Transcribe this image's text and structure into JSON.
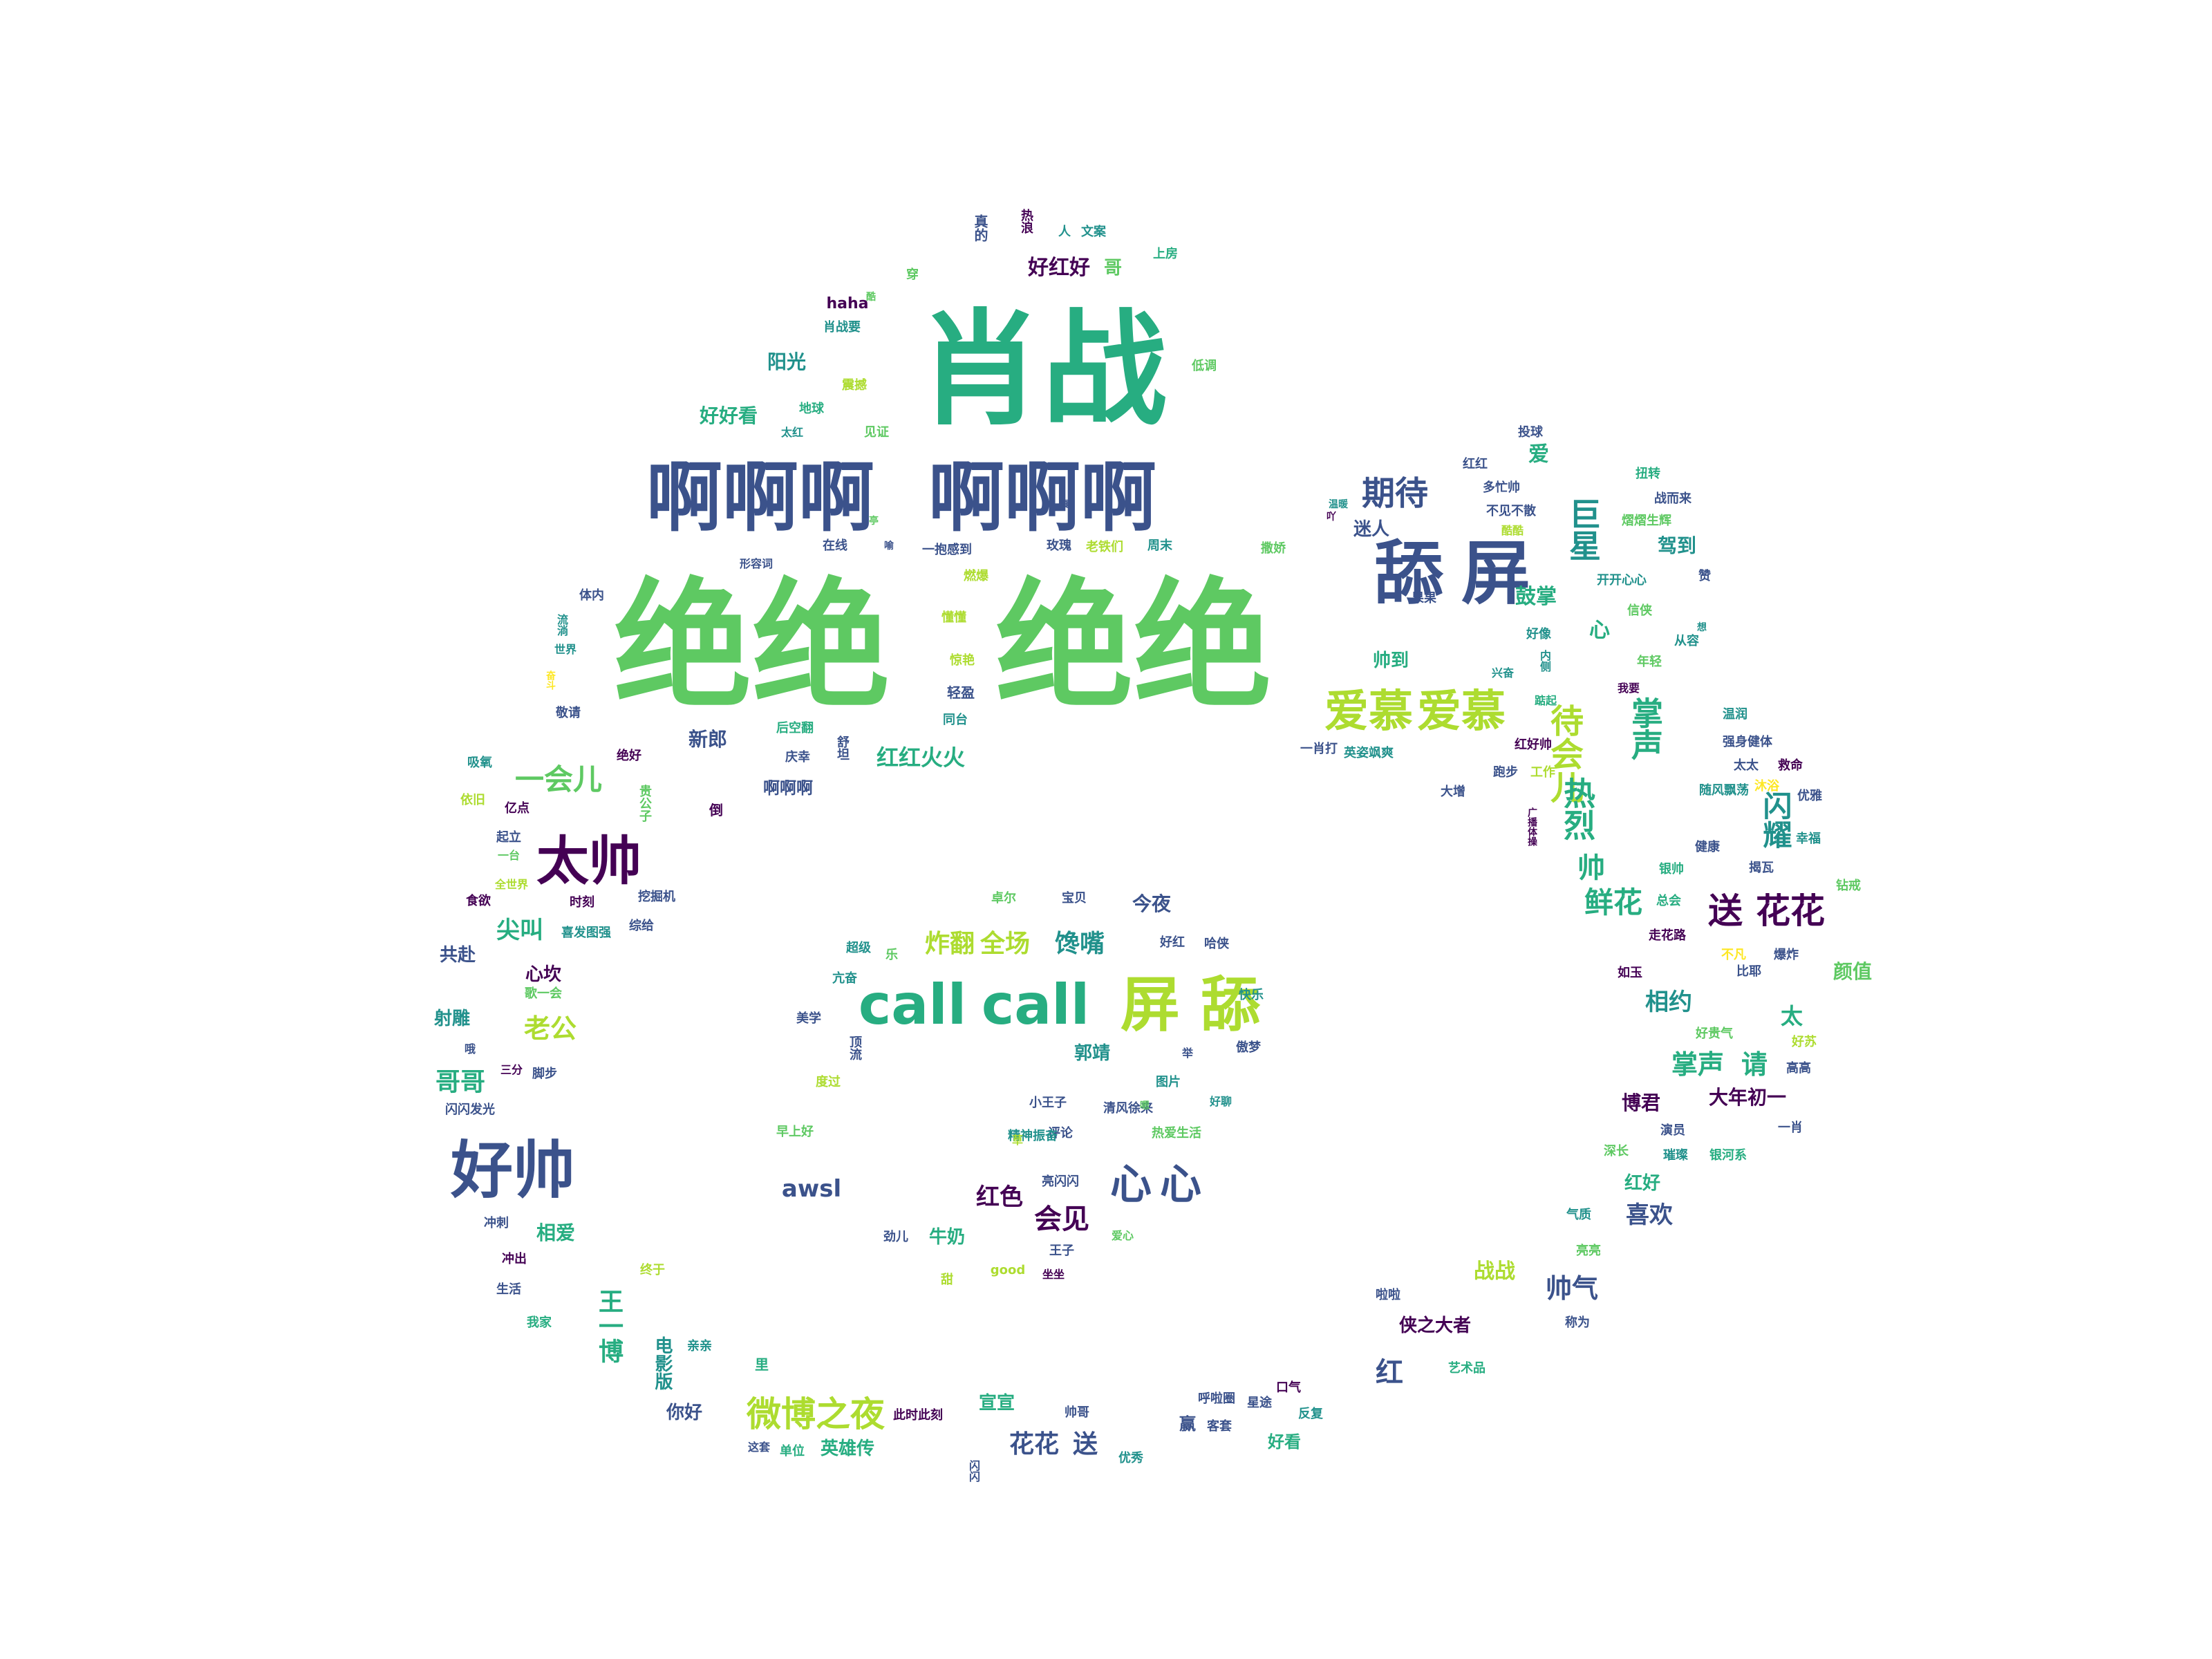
{
  "palette": {
    "c0": "#440154",
    "c1": "#3b528b",
    "c2": "#21918c",
    "c3": "#27ad81",
    "c4": "#5ec962",
    "c5": "#addc30",
    "c6": "#fde725"
  },
  "words": [
    {
      "text": "肖战",
      "color": "c3"
    },
    {
      "text": "啊啊啊",
      "color": "c1"
    },
    {
      "text": "啊啊啊",
      "color": "c1"
    },
    {
      "text": "绝绝",
      "color": "c4"
    },
    {
      "text": "绝绝",
      "color": "c4"
    },
    {
      "text": "舔",
      "color": "c1"
    },
    {
      "text": "屏",
      "color": "c1"
    },
    {
      "text": "call",
      "color": "c3"
    },
    {
      "text": "call",
      "color": "c3"
    },
    {
      "text": "屏",
      "color": "c5"
    },
    {
      "text": "舔",
      "color": "c5"
    },
    {
      "text": "好帅",
      "color": "c1"
    },
    {
      "text": "太帅",
      "color": "c0"
    },
    {
      "text": "爱慕",
      "color": "c5"
    },
    {
      "text": "爱慕",
      "color": "c5"
    },
    {
      "text": "送",
      "color": "c0"
    },
    {
      "text": "花花",
      "color": "c0"
    },
    {
      "text": "微博之夜",
      "color": "c5"
    },
    {
      "text": "心",
      "color": "c1"
    },
    {
      "text": "心",
      "color": "c1"
    },
    {
      "text": "期待",
      "color": "c1"
    },
    {
      "text": "巨星",
      "color": "c2"
    },
    {
      "text": "待会儿",
      "color": "c5"
    },
    {
      "text": "掌声",
      "color": "c3"
    },
    {
      "text": "热烈",
      "color": "c3"
    },
    {
      "text": "闪耀",
      "color": "c2"
    },
    {
      "text": "一会儿",
      "color": "c4"
    },
    {
      "text": "尖叫",
      "color": "c3"
    },
    {
      "text": "老公",
      "color": "c5"
    },
    {
      "text": "哥哥",
      "color": "c3"
    },
    {
      "text": "炸翻",
      "color": "c5"
    },
    {
      "text": "全场",
      "color": "c5"
    },
    {
      "text": "馋嘴",
      "color": "c2"
    },
    {
      "text": "鲜花",
      "color": "c3"
    },
    {
      "text": "帅",
      "color": "c3"
    },
    {
      "text": "awsl",
      "color": "c1"
    },
    {
      "text": "红色",
      "color": "c0"
    },
    {
      "text": "会见",
      "color": "c0"
    },
    {
      "text": "相约",
      "color": "c2"
    },
    {
      "text": "掌声",
      "color": "c3"
    },
    {
      "text": "请",
      "color": "c3"
    },
    {
      "text": "太",
      "color": "c3"
    },
    {
      "text": "帅气",
      "color": "c1"
    },
    {
      "text": "红",
      "color": "c1"
    },
    {
      "text": "喜欢",
      "color": "c1"
    },
    {
      "text": "花花",
      "color": "c1"
    },
    {
      "text": "送",
      "color": "c1"
    },
    {
      "text": "好好看",
      "color": "c3"
    },
    {
      "text": "阳光",
      "color": "c2"
    },
    {
      "text": "好红好",
      "color": "c0"
    },
    {
      "text": "哥",
      "color": "c4"
    },
    {
      "text": "红红火火",
      "color": "c3"
    },
    {
      "text": "新郎",
      "color": "c1"
    },
    {
      "text": "迷人",
      "color": "c1"
    },
    {
      "text": "鼓掌",
      "color": "c3"
    },
    {
      "text": "心",
      "color": "c3"
    },
    {
      "text": "帅到",
      "color": "c3"
    },
    {
      "text": "驾到",
      "color": "c2"
    },
    {
      "text": "爱",
      "color": "c3"
    },
    {
      "text": "宣宣",
      "color": "c3"
    },
    {
      "text": "英雄传",
      "color": "c3"
    },
    {
      "text": "你好",
      "color": "c1"
    },
    {
      "text": "王一博",
      "color": "c3"
    },
    {
      "text": "电影版",
      "color": "c2"
    },
    {
      "text": "相爱",
      "color": "c3"
    },
    {
      "text": "心坎",
      "color": "c0"
    },
    {
      "text": "共赴",
      "color": "c1"
    },
    {
      "text": "射雕",
      "color": "c2"
    },
    {
      "text": "大年初一",
      "color": "c0"
    },
    {
      "text": "博君",
      "color": "c0"
    },
    {
      "text": "红好",
      "color": "c3"
    },
    {
      "text": "战战",
      "color": "c5"
    },
    {
      "text": "侠之大者",
      "color": "c0"
    },
    {
      "text": "郭靖",
      "color": "c2"
    },
    {
      "text": "牛奶",
      "color": "c3"
    },
    {
      "text": "今夜",
      "color": "c1"
    },
    {
      "text": "好看",
      "color": "c3"
    },
    {
      "text": "赢",
      "color": "c1"
    },
    {
      "text": "颜值",
      "color": "c4"
    },
    {
      "text": "啊啊啊",
      "color": "c1"
    },
    {
      "text": "haha",
      "color": "c0"
    },
    {
      "text": "肖战要",
      "color": "c2"
    },
    {
      "text": "真的",
      "color": "c1"
    },
    {
      "text": "热浪",
      "color": "c0"
    },
    {
      "text": "人",
      "color": "c2"
    },
    {
      "text": "文案",
      "color": "c2"
    },
    {
      "text": "上房",
      "color": "c3"
    },
    {
      "text": "低调",
      "color": "c4"
    },
    {
      "text": "震撼",
      "color": "c5"
    },
    {
      "text": "地球",
      "color": "c3"
    },
    {
      "text": "太红",
      "color": "c2"
    },
    {
      "text": "见证",
      "color": "c4"
    },
    {
      "text": "在线",
      "color": "c1"
    },
    {
      "text": "一抱感到",
      "color": "c1"
    },
    {
      "text": "玫瑰",
      "color": "c1"
    },
    {
      "text": "老铁们",
      "color": "c5"
    },
    {
      "text": "周末",
      "color": "c2"
    },
    {
      "text": "形容词",
      "color": "c1"
    },
    {
      "text": "燃爆",
      "color": "c5"
    },
    {
      "text": "懂懂",
      "color": "c5"
    },
    {
      "text": "惊艳",
      "color": "c5"
    },
    {
      "text": "轻盈",
      "color": "c1"
    },
    {
      "text": "同台",
      "color": "c2"
    },
    {
      "text": "后空翻",
      "color": "c3"
    },
    {
      "text": "庆幸",
      "color": "c1"
    },
    {
      "text": "舒坦",
      "color": "c1"
    },
    {
      "text": "投球",
      "color": "c1"
    },
    {
      "text": "红红",
      "color": "c1"
    },
    {
      "text": "多忙帅",
      "color": "c1"
    },
    {
      "text": "不见不散",
      "color": "c1"
    },
    {
      "text": "酷酷",
      "color": "c5"
    },
    {
      "text": "扭转",
      "color": "c3"
    },
    {
      "text": "战而来",
      "color": "c1"
    },
    {
      "text": "熠熠生辉",
      "color": "c4"
    },
    {
      "text": "开开心心",
      "color": "c2"
    },
    {
      "text": "赞",
      "color": "c1"
    },
    {
      "text": "果果",
      "color": "c1"
    },
    {
      "text": "好像",
      "color": "c2"
    },
    {
      "text": "信侠",
      "color": "c4"
    },
    {
      "text": "年轻",
      "color": "c4"
    },
    {
      "text": "从容",
      "color": "c2"
    },
    {
      "text": "我要",
      "color": "c0"
    },
    {
      "text": "温润",
      "color": "c2"
    },
    {
      "text": "强身健体",
      "color": "c1"
    },
    {
      "text": "太太",
      "color": "c1"
    },
    {
      "text": "救命",
      "color": "c0"
    },
    {
      "text": "随风飘荡",
      "color": "c2"
    },
    {
      "text": "沐浴",
      "color": "c6"
    },
    {
      "text": "优雅",
      "color": "c1"
    },
    {
      "text": "幸福",
      "color": "c2"
    },
    {
      "text": "健康",
      "color": "c1"
    },
    {
      "text": "揭瓦",
      "color": "c1"
    },
    {
      "text": "钻戒",
      "color": "c4"
    },
    {
      "text": "一肖打",
      "color": "c1"
    },
    {
      "text": "英姿飒爽",
      "color": "c2"
    },
    {
      "text": "红好帅",
      "color": "c0"
    },
    {
      "text": "大增",
      "color": "c1"
    },
    {
      "text": "跑步",
      "color": "c1"
    },
    {
      "text": "工作",
      "color": "c5"
    },
    {
      "text": "银帅",
      "color": "c3"
    },
    {
      "text": "总会",
      "color": "c3"
    },
    {
      "text": "走花路",
      "color": "c0"
    },
    {
      "text": "不凡",
      "color": "c6"
    },
    {
      "text": "爆炸",
      "color": "c1"
    },
    {
      "text": "比耶",
      "color": "c1"
    },
    {
      "text": "如玉",
      "color": "c0"
    },
    {
      "text": "好贵气",
      "color": "c4"
    },
    {
      "text": "好苏",
      "color": "c5"
    },
    {
      "text": "高高",
      "color": "c1"
    },
    {
      "text": "一肖",
      "color": "c1"
    },
    {
      "text": "演员",
      "color": "c1"
    },
    {
      "text": "深长",
      "color": "c4"
    },
    {
      "text": "璀璨",
      "color": "c2"
    },
    {
      "text": "银河系",
      "color": "c3"
    },
    {
      "text": "气质",
      "color": "c2"
    },
    {
      "text": "亮亮",
      "color": "c4"
    },
    {
      "text": "称为",
      "color": "c1"
    },
    {
      "text": "啦啦",
      "color": "c1"
    },
    {
      "text": "艺术品",
      "color": "c3"
    },
    {
      "text": "口气",
      "color": "c0"
    },
    {
      "text": "星途",
      "color": "c1"
    },
    {
      "text": "反复",
      "color": "c2"
    },
    {
      "text": "呼啦圈",
      "color": "c1"
    },
    {
      "text": "客套",
      "color": "c1"
    },
    {
      "text": "优秀",
      "color": "c2"
    },
    {
      "text": "帅哥",
      "color": "c1"
    },
    {
      "text": "此时此刻",
      "color": "c0"
    },
    {
      "text": "单位",
      "color": "c3"
    },
    {
      "text": "这套",
      "color": "c1"
    },
    {
      "text": "闪闪",
      "color": "c1"
    },
    {
      "text": "亲亲",
      "color": "c2"
    },
    {
      "text": "里",
      "color": "c3"
    },
    {
      "text": "终于",
      "color": "c5"
    },
    {
      "text": "我家",
      "color": "c3"
    },
    {
      "text": "生活",
      "color": "c1"
    },
    {
      "text": "冲出",
      "color": "c0"
    },
    {
      "text": "冲刺",
      "color": "c1"
    },
    {
      "text": "闪闪发光",
      "color": "c1"
    },
    {
      "text": "脚步",
      "color": "c1"
    },
    {
      "text": "三分",
      "color": "c0"
    },
    {
      "text": "哦",
      "color": "c1"
    },
    {
      "text": "歌一会",
      "color": "c4"
    },
    {
      "text": "喜发图强",
      "color": "c2"
    },
    {
      "text": "综给",
      "color": "c1"
    },
    {
      "text": "挖掘机",
      "color": "c1"
    },
    {
      "text": "时刻",
      "color": "c0"
    },
    {
      "text": "食欲",
      "color": "c0"
    },
    {
      "text": "全世界",
      "color": "c5"
    },
    {
      "text": "起立",
      "color": "c1"
    },
    {
      "text": "一台",
      "color": "c4"
    },
    {
      "text": "亿点",
      "color": "c0"
    },
    {
      "text": "依旧",
      "color": "c5"
    },
    {
      "text": "吸氧",
      "color": "c2"
    },
    {
      "text": "绝好",
      "color": "c0"
    },
    {
      "text": "贵公子",
      "color": "c4"
    },
    {
      "text": "倒",
      "color": "c0"
    },
    {
      "text": "敬请",
      "color": "c1"
    },
    {
      "text": "体内",
      "color": "c1"
    },
    {
      "text": "流淌",
      "color": "c2"
    },
    {
      "text": "世界",
      "color": "c2"
    },
    {
      "text": "奋斗",
      "color": "c6"
    },
    {
      "text": "超级",
      "color": "c2"
    },
    {
      "text": "乐",
      "color": "c4"
    },
    {
      "text": "穿",
      "color": "c4"
    },
    {
      "text": "宝贝",
      "color": "c1"
    },
    {
      "text": "卓尔",
      "color": "c4"
    },
    {
      "text": "好红",
      "color": "c1"
    },
    {
      "text": "哈侠",
      "color": "c1"
    },
    {
      "text": "快乐",
      "color": "c2"
    },
    {
      "text": "傲梦",
      "color": "c1"
    },
    {
      "text": "亢奋",
      "color": "c2"
    },
    {
      "text": "美学",
      "color": "c1"
    },
    {
      "text": "顶流",
      "color": "c1"
    },
    {
      "text": "度过",
      "color": "c5"
    },
    {
      "text": "图片",
      "color": "c2"
    },
    {
      "text": "举",
      "color": "c1"
    },
    {
      "text": "小王子",
      "color": "c1"
    },
    {
      "text": "清风徐来",
      "color": "c1"
    },
    {
      "text": "早上好",
      "color": "c4"
    },
    {
      "text": "评论",
      "color": "c1"
    },
    {
      "text": "热爱生活",
      "color": "c4"
    },
    {
      "text": "精神振奋",
      "color": "c2"
    },
    {
      "text": "亮闪闪",
      "color": "c1"
    },
    {
      "text": "劲儿",
      "color": "c1"
    },
    {
      "text": "王子",
      "color": "c1"
    },
    {
      "text": "good",
      "color": "c5"
    },
    {
      "text": "坐坐",
      "color": "c0"
    },
    {
      "text": "甜",
      "color": "c5"
    },
    {
      "text": "爱心",
      "color": "c4"
    },
    {
      "text": "撒娇",
      "color": "c4"
    },
    {
      "text": "亭",
      "color": "c4"
    },
    {
      "text": "温暖",
      "color": "c2"
    },
    {
      "text": "好聊",
      "color": "c2"
    },
    {
      "text": "内侧",
      "color": "c2"
    },
    {
      "text": "兴奋",
      "color": "c2"
    },
    {
      "text": "广播体操",
      "color": "c0"
    },
    {
      "text": "嗯",
      "color": "c4"
    },
    {
      "text": "真",
      "color": "c1"
    },
    {
      "text": "喻",
      "color": "c1"
    },
    {
      "text": "吖",
      "color": "c0"
    },
    {
      "text": "酷",
      "color": "c4"
    },
    {
      "text": "想",
      "color": "c2"
    },
    {
      "text": "草",
      "color": "c5"
    },
    {
      "text": "踮起",
      "color": "c3"
    }
  ]
}
